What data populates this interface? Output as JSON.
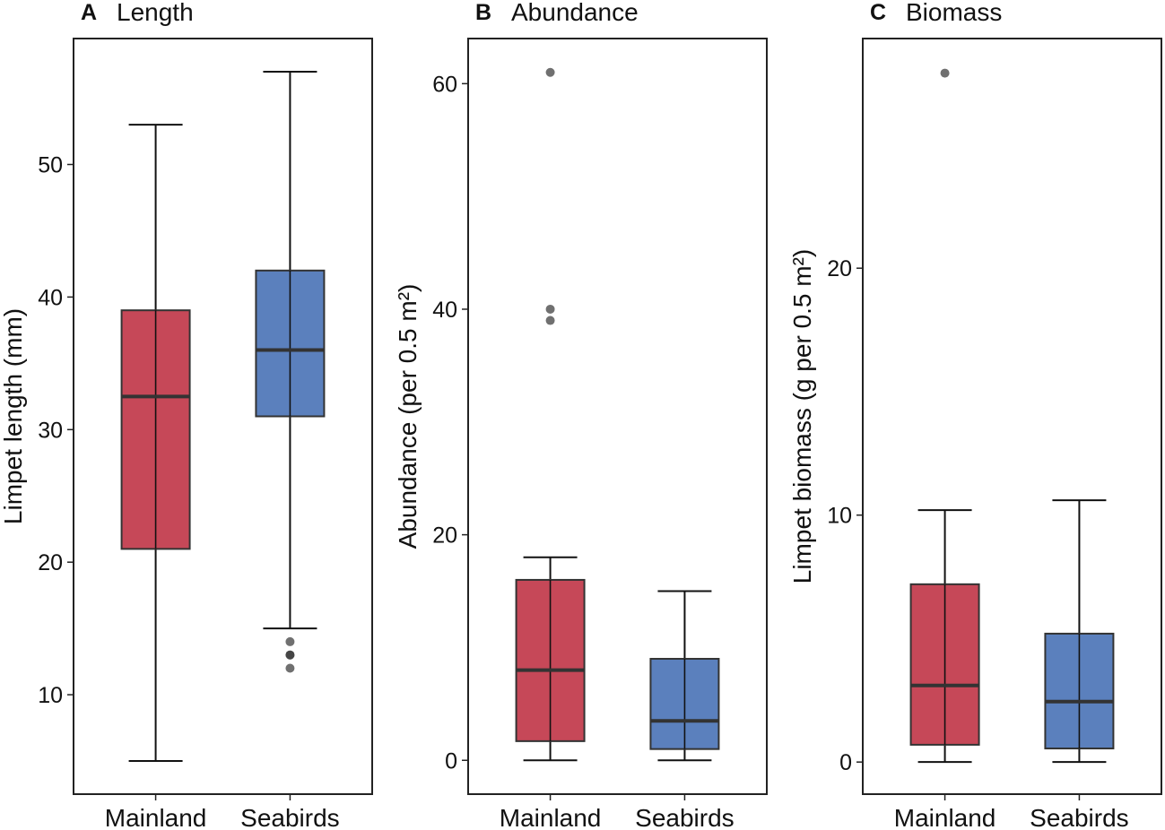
{
  "chart_data": [
    {
      "type": "box",
      "panel_letter": "A",
      "title": "Length",
      "xlabel": "",
      "ylabel": "Limpet length (mm)",
      "ylim": [
        2.5,
        59.5
      ],
      "yticks": [
        10,
        20,
        30,
        40,
        50
      ],
      "categories": [
        "Mainland",
        "Seabirds"
      ],
      "series": [
        {
          "name": "Mainland",
          "color": "#c64858",
          "whisker_low": 5,
          "q1": 21,
          "median": 32.5,
          "q3": 39,
          "whisker_high": 53,
          "outliers": []
        },
        {
          "name": "Seabirds",
          "color": "#5b80bd",
          "whisker_low": 15,
          "q1": 31,
          "median": 36,
          "q3": 42,
          "whisker_high": 57,
          "outliers": [
            12,
            13,
            13,
            14
          ]
        }
      ]
    },
    {
      "type": "box",
      "panel_letter": "B",
      "title": "Abundance",
      "xlabel": "",
      "ylabel": "Abundance (per 0.5 m²)",
      "ylim": [
        -3,
        64
      ],
      "yticks": [
        0,
        20,
        40,
        60
      ],
      "categories": [
        "Mainland",
        "Seabirds"
      ],
      "series": [
        {
          "name": "Mainland",
          "color": "#c64858",
          "whisker_low": 0,
          "q1": 1.7,
          "median": 8,
          "q3": 16,
          "whisker_high": 18,
          "outliers": [
            39,
            40,
            61
          ]
        },
        {
          "name": "Seabirds",
          "color": "#5b80bd",
          "whisker_low": 0,
          "q1": 1,
          "median": 3.5,
          "q3": 9,
          "whisker_high": 15,
          "outliers": []
        }
      ]
    },
    {
      "type": "box",
      "panel_letter": "C",
      "title": "Biomass",
      "xlabel": "",
      "ylabel": "Limpet biomass (g per 0.5 m²)",
      "ylim": [
        -1.3,
        29.3
      ],
      "yticks": [
        0,
        10,
        20
      ],
      "categories": [
        "Mainland",
        "Seabirds"
      ],
      "series": [
        {
          "name": "Mainland",
          "color": "#c64858",
          "whisker_low": 0,
          "q1": 0.7,
          "median": 3.1,
          "q3": 7.2,
          "whisker_high": 10.2,
          "outliers": [
            27.9
          ]
        },
        {
          "name": "Seabirds",
          "color": "#5b80bd",
          "whisker_low": 0,
          "q1": 0.55,
          "median": 2.45,
          "q3": 5.2,
          "whisker_high": 10.6,
          "outliers": []
        }
      ]
    }
  ]
}
